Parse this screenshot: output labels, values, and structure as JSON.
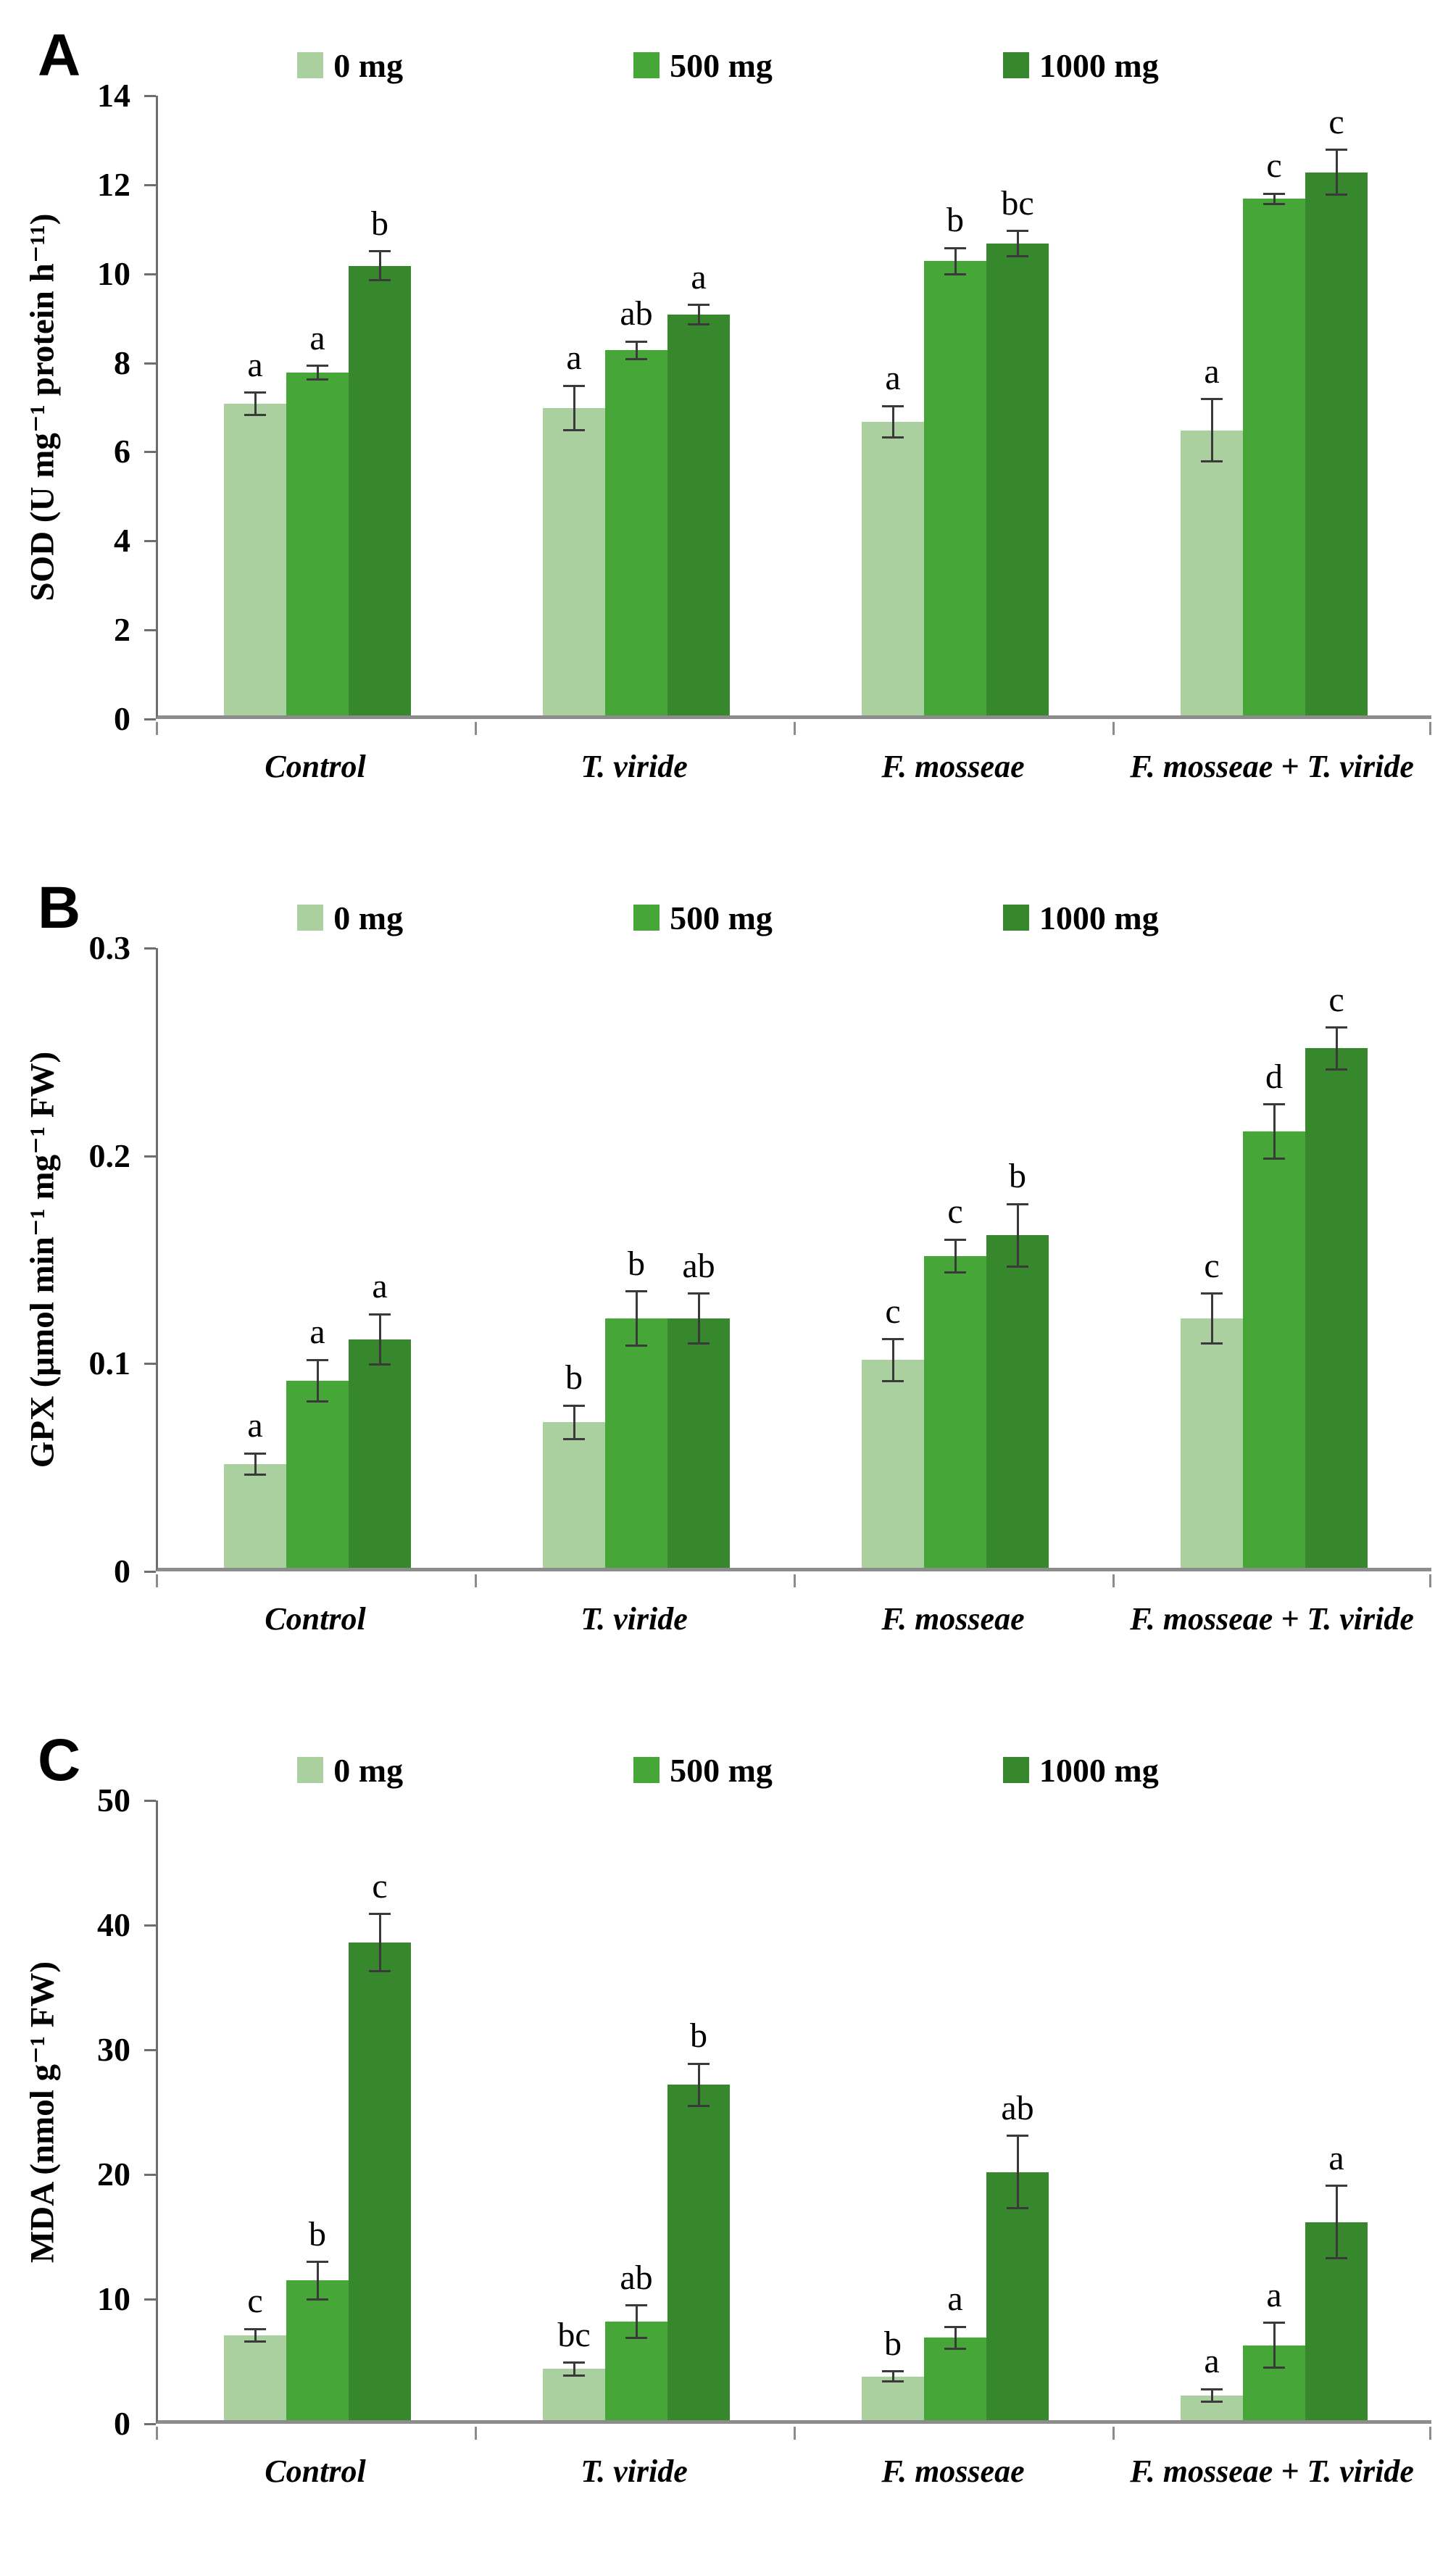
{
  "figure": {
    "colors": {
      "dose0": "#abd0a0",
      "dose500": "#46a637",
      "dose1000": "#37882c"
    },
    "axis_colors": {
      "y_axis": "#6e6e6e",
      "x_axis": "#8c8c8c",
      "error_bar": "#3a3a3a"
    }
  },
  "chart_data": [
    {
      "type": "bar",
      "panel": "A",
      "ylabel": "SOD (U mg⁻¹ protein h⁻¹¹)",
      "ylim": [
        0,
        14
      ],
      "ytick_labels": [
        "0",
        "2",
        "4",
        "6",
        "8",
        "10",
        "12",
        "14"
      ],
      "yticks": [
        0,
        2,
        4,
        6,
        8,
        10,
        12,
        14
      ],
      "grid": false,
      "legend_position": "top",
      "categories": [
        "Control",
        "T. viride",
        "F. mosseae",
        "F. mosseae + T. viride"
      ],
      "series": [
        {
          "name": "0 mg",
          "color": "#abd0a0",
          "values": [
            7.0,
            6.9,
            6.6,
            6.4
          ],
          "errors": [
            0.25,
            0.5,
            0.35,
            0.7
          ],
          "letters": [
            "a",
            "a",
            "a",
            "a"
          ]
        },
        {
          "name": "500 mg",
          "color": "#46a637",
          "values": [
            7.7,
            8.2,
            10.2,
            11.6
          ],
          "errors": [
            0.15,
            0.2,
            0.3,
            0.12
          ],
          "letters": [
            "a",
            "ab",
            "b",
            "c"
          ]
        },
        {
          "name": "1000 mg",
          "color": "#37882c",
          "values": [
            10.1,
            9.0,
            10.6,
            12.2
          ],
          "errors": [
            0.32,
            0.22,
            0.28,
            0.5
          ],
          "letters": [
            "b",
            "a",
            "bc",
            "c"
          ]
        }
      ]
    },
    {
      "type": "bar",
      "panel": "B",
      "ylabel": "GPX (μmol min⁻¹ mg⁻¹ FW)",
      "ylim": [
        0,
        0.3
      ],
      "ytick_labels": [
        "0",
        "0.1",
        "0.2",
        "0.3"
      ],
      "yticks": [
        0,
        0.1,
        0.2,
        0.3
      ],
      "grid": false,
      "legend_position": "top",
      "categories": [
        "Control",
        "T. viride",
        "F. mosseae",
        "F. mosseae + T. viride"
      ],
      "series": [
        {
          "name": "0 mg",
          "color": "#abd0a0",
          "values": [
            0.05,
            0.07,
            0.1,
            0.12
          ],
          "errors": [
            0.005,
            0.008,
            0.01,
            0.012
          ],
          "letters": [
            "a",
            "b",
            "c",
            "c"
          ]
        },
        {
          "name": "500 mg",
          "color": "#46a637",
          "values": [
            0.09,
            0.12,
            0.15,
            0.21
          ],
          "errors": [
            0.01,
            0.013,
            0.008,
            0.013
          ],
          "letters": [
            "a",
            "b",
            "c",
            "d"
          ]
        },
        {
          "name": "1000 mg",
          "color": "#37882c",
          "values": [
            0.11,
            0.12,
            0.16,
            0.25
          ],
          "errors": [
            0.012,
            0.012,
            0.015,
            0.01
          ],
          "letters": [
            "a",
            "ab",
            "b",
            "c"
          ]
        }
      ]
    },
    {
      "type": "bar",
      "panel": "C",
      "ylabel": "MDA (nmol g⁻¹ FW)",
      "ylim": [
        0,
        50
      ],
      "ytick_labels": [
        "0",
        "10",
        "20",
        "30",
        "40",
        "50"
      ],
      "yticks": [
        0,
        10,
        20,
        30,
        40,
        50
      ],
      "grid": false,
      "legend_position": "top",
      "categories": [
        "Control",
        "T. viride",
        "F. mosseae",
        "F. mosseae + T. viride"
      ],
      "series": [
        {
          "name": "0 mg",
          "color": "#abd0a0",
          "values": [
            6.8,
            4.1,
            3.5,
            2.0
          ],
          "errors": [
            0.5,
            0.5,
            0.4,
            0.5
          ],
          "letters": [
            "c",
            "bc",
            "b",
            "a"
          ]
        },
        {
          "name": "500 mg",
          "color": "#46a637",
          "values": [
            11.2,
            7.9,
            6.6,
            6.0
          ],
          "errors": [
            1.5,
            1.3,
            0.9,
            1.8
          ],
          "letters": [
            "b",
            "ab",
            "a",
            "a"
          ]
        },
        {
          "name": "1000 mg",
          "color": "#37882c",
          "values": [
            38.3,
            26.9,
            19.9,
            15.9
          ],
          "errors": [
            2.3,
            1.7,
            2.9,
            2.9
          ],
          "letters": [
            "c",
            "b",
            "ab",
            "a"
          ]
        }
      ]
    }
  ]
}
